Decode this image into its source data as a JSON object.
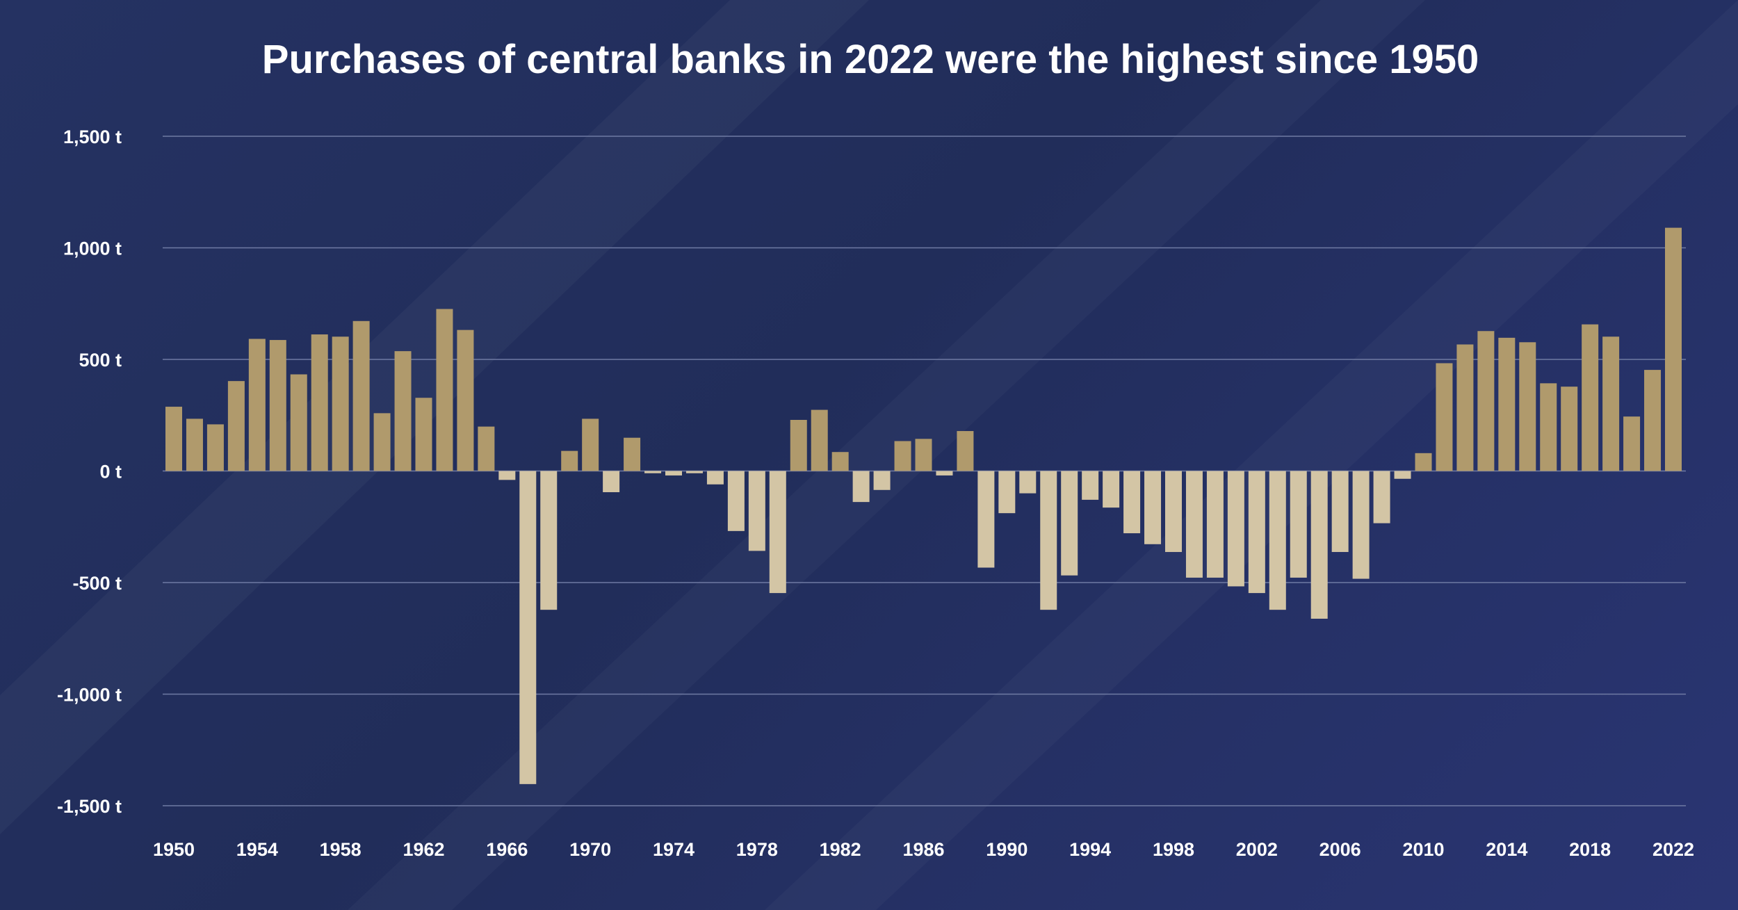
{
  "chart_data": {
    "type": "bar",
    "title": "Purchases of central banks in 2022 were the highest since 1950",
    "xlabel": "",
    "ylabel": "",
    "ylim": [
      -1500,
      1500
    ],
    "yticks": [
      1500,
      1000,
      500,
      0,
      -500,
      -1000,
      -1500
    ],
    "ytick_labels": [
      "1,500 t",
      "1,000 t",
      "500 t",
      "0 t",
      "-500 t",
      "-1,000 t",
      "-1,500 t"
    ],
    "xtick_labels": [
      "1950",
      "1954",
      "1958",
      "1962",
      "1966",
      "1970",
      "1974",
      "1978",
      "1982",
      "1986",
      "1990",
      "1994",
      "1998",
      "2002",
      "2006",
      "2010",
      "2014",
      "2018",
      "2022"
    ],
    "grid": true,
    "colors": {
      "positive": "#b09a6c",
      "negative": "#d3c5a5",
      "grid": "#6f7aa3",
      "background": "#23305e"
    },
    "categories": [
      1950,
      1951,
      1952,
      1953,
      1954,
      1955,
      1956,
      1957,
      1958,
      1959,
      1960,
      1961,
      1962,
      1963,
      1964,
      1965,
      1966,
      1967,
      1968,
      1969,
      1970,
      1971,
      1972,
      1973,
      1974,
      1975,
      1976,
      1977,
      1978,
      1979,
      1980,
      1981,
      1982,
      1983,
      1984,
      1985,
      1986,
      1987,
      1988,
      1989,
      1990,
      1991,
      1992,
      1993,
      1994,
      1995,
      1996,
      1997,
      1998,
      1999,
      2000,
      2001,
      2002,
      2003,
      2004,
      2005,
      2006,
      2007,
      2008,
      2009,
      2010,
      2011,
      2012,
      2013,
      2014,
      2015,
      2016,
      2017,
      2018,
      2019,
      2020,
      2021,
      2022
    ],
    "values": [
      288,
      234,
      209,
      403,
      592,
      587,
      433,
      612,
      602,
      672,
      259,
      537,
      328,
      726,
      632,
      199,
      -40,
      -1403,
      -622,
      90,
      234,
      -95,
      149,
      -10,
      -20,
      -10,
      -60,
      -269,
      -358,
      -547,
      229,
      274,
      85,
      -139,
      -85,
      134,
      144,
      -20,
      179,
      -433,
      -189,
      -100,
      -622,
      -468,
      -129,
      -164,
      -279,
      -328,
      -363,
      -478,
      -478,
      -517,
      -547,
      -622,
      -478,
      -662,
      -363,
      -483,
      -234,
      -35,
      80,
      483,
      567,
      627,
      597,
      577,
      393,
      378,
      657,
      602,
      244,
      453,
      1090
    ]
  }
}
